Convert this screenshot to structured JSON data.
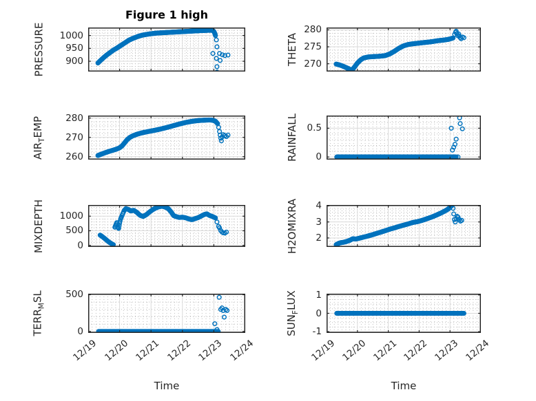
{
  "chart_data": {
    "type": "scatter",
    "title": "Figure 1 high",
    "x_axis": {
      "label": "Time",
      "ticks": [
        0,
        1,
        2,
        3,
        4,
        5
      ],
      "tick_labels": [
        "12/19",
        "12/20",
        "12/21",
        "12/22",
        "12/23",
        "12/24"
      ],
      "lim": [
        0,
        5
      ],
      "minor_step": 0.125
    },
    "marker": {
      "color": "#0072BD",
      "radius": 2.8,
      "stroke_width": 1.5
    },
    "grid": {
      "major_color": "#d9d9d9",
      "minor_color": "#bdbdbd",
      "axis_color": "#262626"
    },
    "charts": [
      {
        "name": "pressure",
        "ylabel": {
          "pre": "PRESSURE",
          "sub": "",
          "post": ""
        },
        "ylabel_offset": 72,
        "ylim": [
          860,
          1031
        ],
        "yticks": [
          900,
          950,
          1000
        ],
        "yminor": 10,
        "step": 0.012,
        "show_x": false,
        "segments": [
          [
            [
              0.31,
              893
            ],
            [
              0.36,
              899
            ],
            [
              0.42,
              906
            ],
            [
              0.5,
              915
            ],
            [
              0.6,
              925
            ],
            [
              0.7,
              934
            ],
            [
              0.8,
              943
            ],
            [
              0.9,
              950
            ],
            [
              1.0,
              958
            ],
            [
              1.1,
              966
            ],
            [
              1.2,
              974
            ],
            [
              1.3,
              982
            ],
            [
              1.45,
              990
            ],
            [
              1.6,
              997
            ],
            [
              1.75,
              1002
            ],
            [
              1.95,
              1006
            ],
            [
              2.15,
              1009
            ],
            [
              2.4,
              1011
            ],
            [
              2.7,
              1013
            ],
            [
              3.0,
              1015
            ],
            [
              3.3,
              1017
            ],
            [
              3.6,
              1019
            ],
            [
              3.8,
              1020
            ],
            [
              3.95,
              1020
            ],
            [
              4.0,
              1016
            ],
            [
              4.03,
              1008
            ],
            [
              4.05,
              1000
            ]
          ]
        ],
        "extras": [
          [
            4.08,
            983
          ],
          [
            4.1,
            956
          ],
          [
            3.97,
            930
          ],
          [
            4.18,
            930
          ],
          [
            4.27,
            925
          ],
          [
            4.35,
            922
          ],
          [
            4.45,
            924
          ],
          [
            4.08,
            911
          ],
          [
            4.2,
            903
          ],
          [
            4.1,
            879
          ],
          [
            4.1,
            858
          ]
        ]
      },
      {
        "name": "theta",
        "ylabel": {
          "pre": "THETA",
          "sub": "",
          "post": ""
        },
        "ylabel_offset": 50,
        "ylim": [
          267.7,
          280.7
        ],
        "yticks": [
          270,
          275,
          280
        ],
        "yminor": 1,
        "step": 0.012,
        "show_x": false,
        "segments": [
          [
            [
              0.31,
              269.9
            ],
            [
              0.4,
              269.7
            ],
            [
              0.5,
              269.4
            ],
            [
              0.6,
              269.0
            ],
            [
              0.7,
              268.6
            ],
            [
              0.78,
              268.2
            ],
            [
              0.85,
              268.4
            ],
            [
              0.92,
              269.2
            ],
            [
              1.0,
              270.2
            ],
            [
              1.1,
              271.1
            ],
            [
              1.2,
              271.7
            ],
            [
              1.35,
              272.0
            ],
            [
              1.5,
              272.1
            ],
            [
              1.7,
              272.2
            ],
            [
              1.9,
              272.4
            ],
            [
              2.05,
              272.9
            ],
            [
              2.2,
              273.7
            ],
            [
              2.35,
              274.6
            ],
            [
              2.5,
              275.3
            ],
            [
              2.65,
              275.7
            ],
            [
              2.8,
              275.9
            ],
            [
              3.0,
              276.1
            ],
            [
              3.2,
              276.3
            ],
            [
              3.4,
              276.5
            ],
            [
              3.6,
              276.8
            ],
            [
              3.8,
              277.0
            ],
            [
              3.95,
              277.2
            ],
            [
              4.1,
              277.6
            ]
          ]
        ],
        "extras": [
          [
            4.15,
            278.7
          ],
          [
            4.18,
            279.3
          ],
          [
            4.2,
            279.6
          ],
          [
            4.22,
            278.9
          ],
          [
            4.25,
            278.3
          ],
          [
            4.28,
            278.8
          ],
          [
            4.3,
            278.2
          ],
          [
            4.33,
            277.7
          ],
          [
            4.36,
            277.4
          ],
          [
            4.4,
            277.9
          ],
          [
            4.45,
            277.7
          ]
        ]
      },
      {
        "name": "airtemp",
        "ylabel": {
          "pre": "AIR",
          "sub": "T",
          "post": "EMP"
        },
        "ylabel_offset": 72,
        "ylim": [
          258.5,
          281.3
        ],
        "yticks": [
          260,
          270,
          280
        ],
        "yminor": 2,
        "step": 0.012,
        "show_x": false,
        "segments": [
          [
            [
              0.31,
              260.6
            ],
            [
              0.4,
              261.2
            ],
            [
              0.5,
              261.8
            ],
            [
              0.6,
              262.4
            ],
            [
              0.7,
              262.9
            ],
            [
              0.8,
              263.4
            ],
            [
              0.9,
              263.9
            ],
            [
              1.0,
              264.6
            ],
            [
              1.08,
              265.6
            ],
            [
              1.16,
              267.2
            ],
            [
              1.24,
              268.8
            ],
            [
              1.32,
              269.9
            ],
            [
              1.42,
              270.8
            ],
            [
              1.55,
              271.6
            ],
            [
              1.7,
              272.3
            ],
            [
              1.9,
              273.0
            ],
            [
              2.1,
              273.6
            ],
            [
              2.3,
              274.3
            ],
            [
              2.5,
              275.1
            ],
            [
              2.7,
              276.0
            ],
            [
              2.9,
              276.9
            ],
            [
              3.1,
              277.7
            ],
            [
              3.3,
              278.3
            ],
            [
              3.5,
              278.7
            ],
            [
              3.7,
              278.9
            ],
            [
              3.85,
              279.0
            ],
            [
              3.95,
              278.9
            ],
            [
              4.05,
              278.4
            ],
            [
              4.12,
              277.1
            ]
          ]
        ],
        "extras": [
          [
            4.15,
            275.2
          ],
          [
            4.18,
            273.0
          ],
          [
            4.2,
            271.2
          ],
          [
            4.22,
            269.6
          ],
          [
            4.24,
            268.2
          ],
          [
            4.27,
            270.3
          ],
          [
            4.3,
            271.4
          ],
          [
            4.35,
            270.9
          ],
          [
            4.4,
            270.4
          ],
          [
            4.45,
            271.2
          ]
        ]
      },
      {
        "name": "rainfall",
        "ylabel": {
          "pre": "RAINFALL",
          "sub": "",
          "post": ""
        },
        "ylabel_offset": 50,
        "ylim": [
          -0.045,
          0.72
        ],
        "yticks": [
          0,
          0.5
        ],
        "yminor": 0.1,
        "step": 0.012,
        "show_x": false,
        "segments": [
          [
            [
              0.33,
              0
            ],
            [
              4.2,
              0
            ]
          ]
        ],
        "extras": [
          [
            4.04,
            0.5
          ],
          [
            4.08,
            0.12
          ],
          [
            4.12,
            0.17
          ],
          [
            4.16,
            0.22
          ],
          [
            4.2,
            0.31
          ],
          [
            4.31,
            0.68
          ],
          [
            4.33,
            0.58
          ],
          [
            4.4,
            0.49
          ],
          [
            4.26,
            0
          ]
        ]
      },
      {
        "name": "mixdepth",
        "ylabel": {
          "pre": "MIXDEPTH",
          "sub": "",
          "post": ""
        },
        "ylabel_offset": 72,
        "ylim": [
          -54,
          1384
        ],
        "yticks": [
          0,
          500,
          1000
        ],
        "yminor": 100,
        "step": 0.02,
        "show_x": false,
        "segments": [
          [
            [
              0.38,
              350
            ],
            [
              0.45,
              300
            ],
            [
              0.52,
              240
            ],
            [
              0.58,
              185
            ],
            [
              0.64,
              130
            ],
            [
              0.7,
              85
            ],
            [
              0.76,
              45
            ],
            [
              0.8,
              25
            ]
          ],
          [
            [
              0.85,
              620
            ],
            [
              0.88,
              700
            ],
            [
              0.91,
              780
            ],
            [
              0.94,
              640
            ],
            [
              0.97,
              580
            ],
            [
              1.0,
              760
            ],
            [
              1.03,
              900
            ],
            [
              1.06,
              980
            ],
            [
              1.1,
              1080
            ],
            [
              1.15,
              1200
            ],
            [
              1.2,
              1260
            ],
            [
              1.28,
              1230
            ],
            [
              1.35,
              1180
            ],
            [
              1.45,
              1200
            ],
            [
              1.55,
              1130
            ],
            [
              1.65,
              1030
            ],
            [
              1.75,
              990
            ],
            [
              1.85,
              1050
            ],
            [
              1.95,
              1140
            ],
            [
              2.05,
              1220
            ],
            [
              2.15,
              1280
            ],
            [
              2.25,
              1320
            ],
            [
              2.35,
              1340
            ],
            [
              2.45,
              1310
            ],
            [
              2.55,
              1260
            ],
            [
              2.65,
              1130
            ],
            [
              2.72,
              1020
            ],
            [
              2.8,
              985
            ],
            [
              2.9,
              955
            ],
            [
              3.0,
              965
            ],
            [
              3.1,
              945
            ],
            [
              3.2,
              905
            ],
            [
              3.3,
              880
            ],
            [
              3.4,
              915
            ],
            [
              3.5,
              950
            ],
            [
              3.6,
              1005
            ],
            [
              3.7,
              1060
            ],
            [
              3.78,
              1080
            ],
            [
              3.85,
              1030
            ],
            [
              3.95,
              990
            ],
            [
              4.05,
              940
            ]
          ]
        ],
        "extras": [
          [
            4.1,
            800
          ],
          [
            4.15,
            650
          ],
          [
            4.18,
            600
          ],
          [
            4.22,
            505
          ],
          [
            4.26,
            455
          ],
          [
            4.3,
            430
          ],
          [
            4.35,
            420
          ],
          [
            4.4,
            455
          ]
        ]
      },
      {
        "name": "h2omixra",
        "ylabel": {
          "pre": "H2OMIXRA",
          "sub": "",
          "post": ""
        },
        "ylabel_offset": 50,
        "ylim": [
          1.44,
          4.06
        ],
        "yticks": [
          2,
          3,
          4
        ],
        "yminor": 0.2,
        "step": 0.012,
        "show_x": false,
        "segments": [
          [
            [
              0.31,
              1.58
            ],
            [
              0.38,
              1.65
            ],
            [
              0.45,
              1.7
            ],
            [
              0.55,
              1.73
            ],
            [
              0.65,
              1.78
            ],
            [
              0.75,
              1.85
            ],
            [
              0.85,
              1.95
            ],
            [
              0.95,
              1.93
            ],
            [
              1.05,
              1.98
            ],
            [
              1.15,
              2.03
            ],
            [
              1.3,
              2.1
            ],
            [
              1.45,
              2.18
            ],
            [
              1.6,
              2.27
            ],
            [
              1.75,
              2.36
            ],
            [
              1.9,
              2.45
            ],
            [
              2.05,
              2.55
            ],
            [
              2.2,
              2.63
            ],
            [
              2.35,
              2.72
            ],
            [
              2.5,
              2.8
            ],
            [
              2.65,
              2.88
            ],
            [
              2.8,
              2.97
            ],
            [
              2.95,
              3.02
            ],
            [
              3.1,
              3.1
            ],
            [
              3.25,
              3.2
            ],
            [
              3.4,
              3.3
            ],
            [
              3.55,
              3.42
            ],
            [
              3.7,
              3.55
            ],
            [
              3.85,
              3.7
            ],
            [
              3.95,
              3.82
            ],
            [
              4.02,
              3.95
            ],
            [
              4.07,
              4.05
            ]
          ]
        ],
        "extras": [
          [
            4.1,
            3.85
          ],
          [
            4.12,
            3.5
          ],
          [
            4.14,
            3.15
          ],
          [
            4.17,
            3.0
          ],
          [
            4.2,
            3.2
          ],
          [
            4.23,
            3.35
          ],
          [
            4.26,
            3.3
          ],
          [
            4.3,
            3.15
          ],
          [
            4.34,
            3.05
          ],
          [
            4.38,
            3.1
          ]
        ]
      },
      {
        "name": "terrmsl",
        "ylabel": {
          "pre": "TERR",
          "sub": "M",
          "post": "SL"
        },
        "ylabel_offset": 72,
        "ylim": [
          -20,
          514
        ],
        "yticks": [
          0,
          500
        ],
        "yminor": 100,
        "step": 0.012,
        "show_x": true,
        "segments": [
          [
            [
              0.33,
              0
            ],
            [
              4.14,
              0
            ]
          ]
        ],
        "extras": [
          [
            4.03,
            105
          ],
          [
            4.1,
            25
          ],
          [
            4.17,
            465
          ],
          [
            4.22,
            300
          ],
          [
            4.26,
            320
          ],
          [
            4.3,
            285
          ],
          [
            4.33,
            195
          ],
          [
            4.38,
            300
          ],
          [
            4.42,
            285
          ]
        ]
      },
      {
        "name": "sunflux",
        "ylabel": {
          "pre": "SUN",
          "sub": "F",
          "post": "LUX"
        },
        "ylabel_offset": 50,
        "ylim": [
          -1.07,
          1.07
        ],
        "yticks": [
          -1,
          0,
          1
        ],
        "yminor": 0.25,
        "step": 0.012,
        "show_x": true,
        "segments": [
          [
            [
              0.33,
              0
            ],
            [
              4.45,
              0
            ]
          ]
        ],
        "extras": []
      }
    ]
  }
}
